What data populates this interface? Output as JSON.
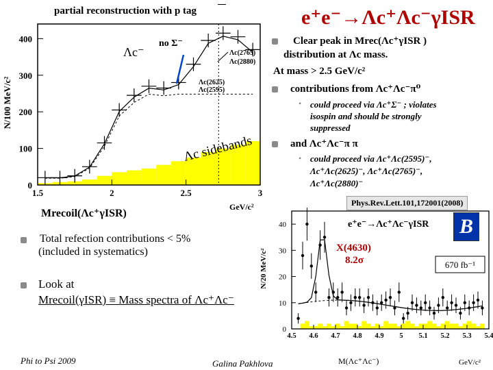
{
  "slide": {
    "title": "e⁺e⁻→Λc⁺Λc⁻γISR",
    "subtitle": "partial reconstruction with p tag",
    "bullets": {
      "b1_l1": "Clear peak in Mrec(Λc⁺γISR )",
      "b1_l2": "distribution at Λc mass.",
      "b1_l3": "At mass > 2.5 GeV/c²",
      "b1_l4": "contributions from  Λc⁺Λc⁻π⁰",
      "s1_l1": "could proceed via Λc⁺Σ⁻ ; violates",
      "s1_l2": "isospin and should be strongly",
      "s1_l3": "suppressed",
      "b2": "and Λc⁺Λc⁻π π",
      "s2_l1": "could proceed via Λc⁺Λc(2595)⁻,",
      "s2_l2": "Λc⁺Λc(2625)⁻, Λc⁺Λc(2765)⁻,",
      "s2_l3": "Λc⁺Λc(2880)⁻",
      "b3_l1": "Total refection contributions < 5%",
      "b3_l2": "(included in systematics)",
      "b4_l1": "Look at",
      "b4_l2": "Mrecoil(γISR) ≡ Mass spectra of Λc⁺Λc⁻"
    },
    "reference": "Phys.Rev.Lett.101,172001(2008)",
    "footer_left": "Phi to Psi 2009",
    "footer_center": "Galina Pakhlova"
  },
  "plot1": {
    "ylabel": "N/100 MeV/c²",
    "xlabel": "Mrecoil(Λc⁺γISR)",
    "xunit": "GeV/c²",
    "yticks": [
      "400",
      "300",
      "200",
      "100",
      "0"
    ],
    "xticks": [
      "1.5",
      "2",
      "2.5",
      "3"
    ],
    "labels": {
      "lambda_c": "Λc⁻",
      "no_sigma": "no Σ⁻",
      "r2765": "Λc(2765)",
      "r2880": "Λc(2880)",
      "r2625": "Λc(2625)",
      "r2595": "Λc(2595)",
      "sidebands": "Λc  sidebands"
    },
    "colors": {
      "sideband": "#ffff00",
      "frame": "#000000"
    }
  },
  "plot2": {
    "ylabel": "N/20 MeV/c²",
    "title": "e⁺e⁻→Λc⁺Λc⁻γISR",
    "yticks": [
      "40",
      "30",
      "20",
      "10",
      "0"
    ],
    "xticks": [
      "4.5",
      "4.6",
      "4.7",
      "4.8",
      "4.9",
      "5",
      "5.1",
      "5.2",
      "5.3",
      "5.4"
    ],
    "xlabel": "M(Λc⁺Λc⁻)",
    "xunit": "GeV/c²",
    "peak_label": "X(4630)",
    "significance": "8.2σ",
    "lumi": "670 fb⁻¹",
    "logo": "B",
    "colors": {
      "sideband": "#ffff00",
      "significance": "#b00000"
    }
  },
  "chart_data": [
    {
      "type": "bar",
      "title": "",
      "xlabel": "Mrecoil(Λc⁺γISR)",
      "ylabel": "N/100 MeV/c²",
      "xlim": [
        1.5,
        3.0
      ],
      "ylim": [
        0,
        440
      ],
      "series": [
        {
          "name": "data",
          "x": [
            1.55,
            1.65,
            1.75,
            1.85,
            1.95,
            2.05,
            2.15,
            2.25,
            2.35,
            2.45,
            2.55,
            2.65,
            2.75,
            2.85,
            2.95
          ],
          "values": [
            20,
            20,
            25,
            50,
            115,
            205,
            245,
            270,
            265,
            280,
            330,
            395,
            415,
            405,
            370
          ]
        },
        {
          "name": "Λc sidebands",
          "x": [
            1.55,
            1.65,
            1.75,
            1.85,
            1.95,
            2.05,
            2.15,
            2.25,
            2.35,
            2.45,
            2.55,
            2.65,
            2.75,
            2.85,
            2.95
          ],
          "values": [
            5,
            8,
            10,
            15,
            25,
            35,
            40,
            45,
            55,
            65,
            75,
            90,
            100,
            110,
            120
          ]
        }
      ]
    },
    {
      "type": "bar",
      "title": "e⁺e⁻→Λc⁺Λc⁻γISR",
      "xlabel": "M(Λc⁺Λc⁻)",
      "ylabel": "N/20 MeV/c²",
      "xlim": [
        4.5,
        5.4
      ],
      "ylim": [
        0,
        45
      ],
      "series": [
        {
          "name": "data",
          "x": [
            4.53,
            4.55,
            4.57,
            4.59,
            4.61,
            4.63,
            4.65,
            4.67,
            4.69,
            4.71,
            4.73,
            4.75,
            4.77,
            4.79,
            4.81,
            4.83,
            4.85,
            4.87,
            4.89,
            4.91,
            4.93,
            4.95,
            4.97,
            4.99,
            5.01,
            5.03,
            5.05,
            5.07,
            5.09,
            5.11,
            5.13,
            5.15,
            5.17,
            5.19,
            5.21,
            5.23,
            5.25,
            5.27,
            5.29,
            5.31,
            5.33,
            5.35,
            5.37
          ],
          "values": [
            4,
            28,
            40,
            24,
            14,
            32,
            35,
            12,
            14,
            12,
            14,
            8,
            10,
            12,
            12,
            9,
            12,
            10,
            8,
            10,
            11,
            12,
            8,
            14,
            4,
            6,
            10,
            9,
            8,
            10,
            8,
            6,
            9,
            12,
            8,
            10,
            9,
            6,
            10,
            8,
            10,
            11,
            8
          ]
        },
        {
          "name": "sidebands",
          "x": [
            4.53,
            4.55,
            4.57,
            4.59,
            4.61,
            4.63,
            4.65,
            4.67,
            4.69,
            4.71,
            4.73,
            4.75,
            4.77,
            4.79,
            4.81,
            4.83,
            4.85,
            4.87,
            4.89,
            4.91,
            4.93,
            4.95,
            4.97,
            4.99,
            5.01,
            5.03,
            5.05,
            5.07,
            5.09,
            5.11,
            5.13,
            5.15,
            5.17,
            5.19,
            5.21,
            5.23,
            5.25,
            5.27,
            5.29,
            5.31,
            5.33,
            5.35,
            5.37
          ],
          "values": [
            0,
            2,
            3,
            1,
            1,
            2,
            1,
            2,
            1,
            2,
            1,
            3,
            2,
            2,
            1,
            3,
            2,
            1,
            2,
            1,
            3,
            2,
            2,
            1,
            2,
            3,
            2,
            1,
            2,
            2,
            3,
            2,
            1,
            2,
            3,
            2,
            2,
            1,
            2,
            3,
            2,
            1,
            2
          ]
        }
      ]
    }
  ]
}
